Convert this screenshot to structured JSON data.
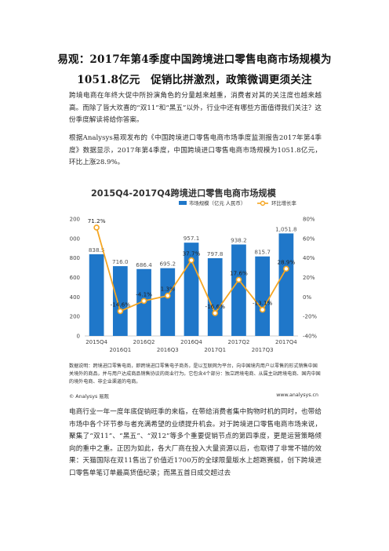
{
  "heading": {
    "line1": "易观：2017年第4季度中国跨境进口零售电商市场规模为",
    "line2": "1051.8亿元　促销比拼激烈，政策微调更须关注"
  },
  "paragraphs": {
    "p1": "跨境电商在年终大促中所扮演角色的分量越来越重，消费者对其的关注度也越来越高。而除了皆大欢喜的“双11”和“黑五”以外，行业中还有哪些方面值得我们关注？这份季度解读将给你答案。",
    "p2": "根据Analysys易观发布的《中国跨境进口零售电商市场季度监测报告2017年第4季度》数据显示，2017年第4季度，中国跨境进口零售电商市场规模为1051.8亿元，环比上涨28.9%。",
    "p3": "电商行业一年一度年底促销旺季的来临，在带给消费者集中购物时机的同时，也带给市场中各个环节参与者充满希望的业绩提升机会。对于跨境进口零售电商市场来说，聚集了“双11”、“黑五”、“双12”等多个重要促销节点的第四季度，更是运营策略倾向的重中之重。正因为如此，各大厂商在投入大量资源以后，也取得了非常不错的效果：天猫国际在双11售出了价值近1700万的全球限量版水上超跑赛艇，创下跨境进口零售单笔订单最高货值纪录；而黑五首日成交超过去"
  },
  "chart_data": {
    "type": "bar",
    "title": "2015Q4-2017Q4跨境进口零售电商市场规模",
    "categories": [
      "2015Q4",
      "2016Q1",
      "2016Q2",
      "2016Q3",
      "2016Q4",
      "2017Q1",
      "2017Q2",
      "2017Q3",
      "2017Q4"
    ],
    "tick_labels_row1": [
      "2015Q4",
      "",
      "2016Q2",
      "",
      "2016Q4",
      "",
      "2017Q2",
      "",
      "2017Q4"
    ],
    "tick_labels_row2": [
      "",
      "2016Q1",
      "",
      "2016Q3",
      "",
      "2017Q1",
      "",
      "2017Q3",
      ""
    ],
    "series": [
      {
        "name": "市场规模（亿元 人民币）",
        "type": "bar",
        "values": [
          838.5,
          716.0,
          686.4,
          695.2,
          957.1,
          797.8,
          938.2,
          815.7,
          1051.8
        ],
        "labels": [
          "838.5",
          "716.0",
          "686.4",
          "695.2",
          "957.1",
          "797.8",
          "938.2",
          "815.7",
          "1,051.8"
        ]
      },
      {
        "name": "环比增长率",
        "type": "line",
        "values": [
          71.2,
          -14.6,
          -4.1,
          1.3,
          37.7,
          -16.6,
          17.6,
          -13.1,
          28.9
        ],
        "labels": [
          "71.2%",
          "-14.6%",
          "-4.1%",
          "1.3%",
          "37.7%",
          "-16.6%",
          "17.6%",
          "-13.1%",
          "28.9%"
        ]
      }
    ],
    "y_left": {
      "ylim": [
        0,
        1200
      ],
      "ticks": [
        "0",
        "200",
        "400",
        "600",
        "800",
        "1,000",
        "1,200"
      ]
    },
    "y_right": {
      "ylim": [
        -40,
        80
      ],
      "ticks": [
        "-40%",
        "-20%",
        "0%",
        "20%",
        "40%",
        "60%",
        "80%"
      ]
    },
    "legend_position": "top-right",
    "colors": {
      "bar": "#1f77c9",
      "line": "#f5a623",
      "title_bg": "#ffffff"
    },
    "note": "数据说明：跨境进口零售电商，即跨境进口零售电子商务，是以互联网为平台，向中国境内用户以零售的形式销售中国关境外的商品，并与用户达成商品销售协议的商业行为。它包含4个部分：独立跨境电商、从属主站跨境电商、国内中国的境外电商、非企业渠道的电商。",
    "footer_left": "© Analysys 易观",
    "footer_right": "www.analysys.cn"
  }
}
